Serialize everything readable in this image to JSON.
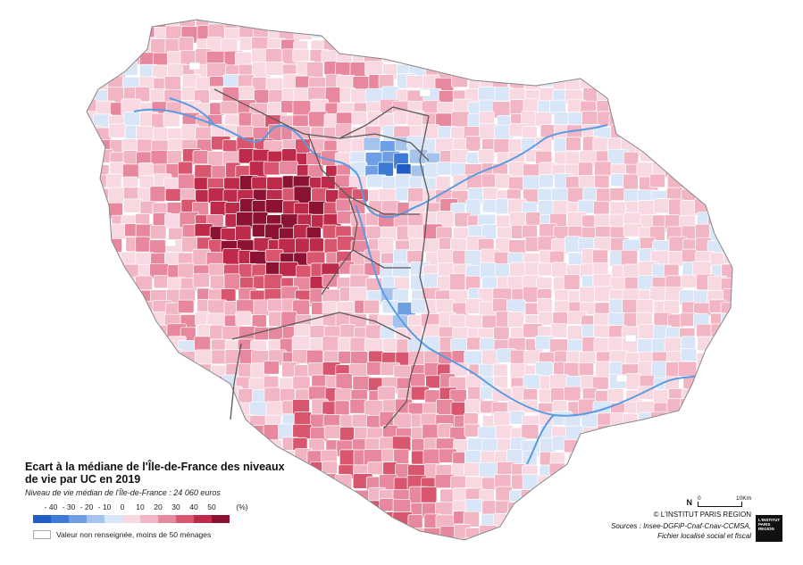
{
  "map": {
    "title": "Ecart à la médiane de l'Île-de-France des niveaux de vie par UC en 2019",
    "subtitle": "Niveau de vie médian de l'Île-de-France : 24 060 euros",
    "legend": {
      "tick_labels": [
        "- 40",
        "- 30",
        "- 20",
        "- 10",
        "0",
        "10",
        "20",
        "30",
        "40",
        "50",
        "(%)"
      ],
      "classes": [
        {
          "range": "< -40",
          "color": "#1f5cc4"
        },
        {
          "range": "-40 – -30",
          "color": "#3d7bd6"
        },
        {
          "range": "-30 – -20",
          "color": "#6e9ee3"
        },
        {
          "range": "-20 – -10",
          "color": "#a5c3ec"
        },
        {
          "range": "-10 – 0",
          "color": "#d8e6f7"
        },
        {
          "range": "0 – 10",
          "color": "#f8d9e1"
        },
        {
          "range": "10 – 20",
          "color": "#f2b5c3"
        },
        {
          "range": "20 – 30",
          "color": "#e8889e"
        },
        {
          "range": "30 – 40",
          "color": "#d9566f"
        },
        {
          "range": "40 – 50",
          "color": "#bd2a4a"
        },
        {
          "range": "> 50",
          "color": "#8c1233"
        }
      ],
      "nodata_label": "Valeur non renseignée, moins de 50 ménages"
    },
    "scale": {
      "north": "N",
      "start": "0",
      "end": "10Km"
    },
    "copyright": "© L'INSTITUT PARIS REGION",
    "sources_line1": "Sources : Insee-DGFiP-Cnaf-Cnav-CCMSA,",
    "sources_line2": "Fichier localisé social et fiscal",
    "logo_text": "L'INSTITUT PARIS REGION",
    "river_color": "#5b9be0",
    "boundary_color": "#666666"
  }
}
